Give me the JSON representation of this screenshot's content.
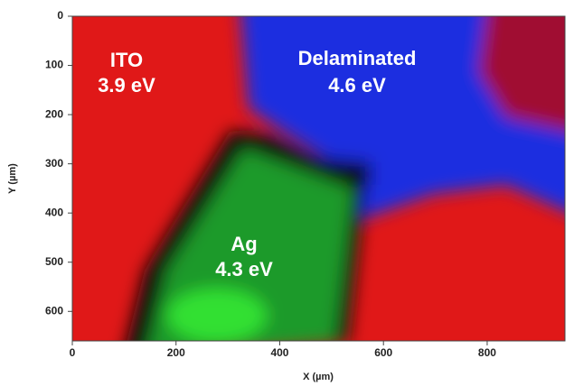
{
  "chart_data": {
    "type": "map",
    "xlabel": "X (µm)",
    "ylabel": "Y (µm)",
    "xlim": [
      0,
      950
    ],
    "ylim": [
      0,
      660
    ],
    "xticks": [
      0,
      200,
      400,
      600,
      800
    ],
    "yticks": [
      0,
      100,
      200,
      300,
      400,
      500,
      600
    ],
    "annotations": [
      "ITO",
      "3.9 eV",
      "Delaminated",
      "4.6 eV",
      "Ag",
      "4.3 eV"
    ]
  }
}
